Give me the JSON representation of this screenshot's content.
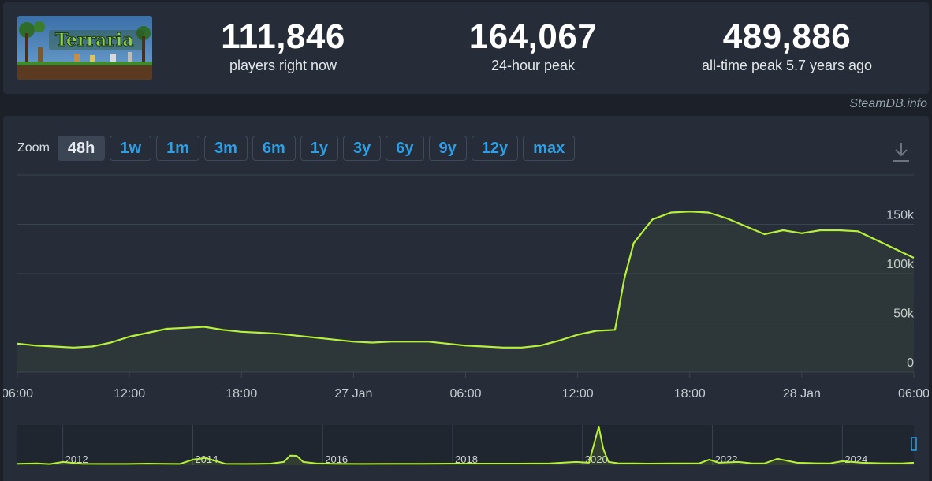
{
  "stats": {
    "current": {
      "value": "111,846",
      "label": "players right now"
    },
    "peak24": {
      "value": "164,067",
      "label": "24-hour peak"
    },
    "alltime": {
      "value": "489,886",
      "label": "all-time peak 5.7 years ago"
    }
  },
  "watermark": "SteamDB.info",
  "game_logo": {
    "text": "Terraria",
    "icon": "terraria-logo"
  },
  "zoom": {
    "label": "Zoom",
    "options": [
      "48h",
      "1w",
      "1m",
      "3m",
      "6m",
      "1y",
      "3y",
      "6y",
      "9y",
      "12y",
      "max"
    ],
    "selected": "48h"
  },
  "download_icon": "download-icon",
  "colors": {
    "line": "#b7f03a",
    "grid": "#3a4350",
    "axis_text": "#c7ccd3",
    "accent": "#2c9fe6"
  },
  "chart_data": [
    {
      "type": "area",
      "x_unit": "hours since 26 Jan 06:00",
      "x_ticks": [
        {
          "x": 0,
          "label": "06:00"
        },
        {
          "x": 6,
          "label": "12:00"
        },
        {
          "x": 12,
          "label": "18:00"
        },
        {
          "x": 18,
          "label": "27 Jan"
        },
        {
          "x": 24,
          "label": "06:00"
        },
        {
          "x": 30,
          "label": "12:00"
        },
        {
          "x": 36,
          "label": "18:00"
        },
        {
          "x": 42,
          "label": "28 Jan"
        },
        {
          "x": 48,
          "label": "06:00"
        }
      ],
      "y_ticks": [
        {
          "y": 0,
          "label": "0"
        },
        {
          "y": 50000,
          "label": "50k"
        },
        {
          "y": 100000,
          "label": "100k"
        },
        {
          "y": 150000,
          "label": "150k"
        }
      ],
      "xlim": [
        0,
        48
      ],
      "ylim": [
        0,
        200000
      ],
      "grid": true,
      "x": [
        0,
        1,
        2,
        3,
        4,
        5,
        6,
        7,
        8,
        9,
        10,
        11,
        12,
        13,
        14,
        15,
        16,
        17,
        18,
        19,
        20,
        21,
        22,
        23,
        24,
        25,
        26,
        27,
        28,
        29,
        30,
        31,
        32,
        32.5,
        33,
        34,
        35,
        36,
        37,
        38,
        39,
        40,
        41,
        42,
        43,
        44,
        45,
        46,
        47,
        48
      ],
      "values": [
        29000,
        27000,
        26000,
        25000,
        26000,
        30000,
        36000,
        40000,
        44000,
        45000,
        46000,
        43000,
        41000,
        40000,
        39000,
        37000,
        35000,
        33000,
        31000,
        30000,
        31000,
        31000,
        31000,
        29000,
        27000,
        26000,
        25000,
        25000,
        27000,
        32000,
        38000,
        42000,
        43000,
        95000,
        131000,
        155000,
        162000,
        163000,
        162000,
        156000,
        148000,
        140000,
        144000,
        141000,
        144000,
        144000,
        143000,
        134000,
        125000,
        116000
      ]
    },
    {
      "type": "area",
      "x_unit": "year",
      "x_ticks": [
        {
          "x": 2012,
          "label": "2012"
        },
        {
          "x": 2014,
          "label": "2014"
        },
        {
          "x": 2016,
          "label": "2016"
        },
        {
          "x": 2018,
          "label": "2018"
        },
        {
          "x": 2020,
          "label": "2020"
        },
        {
          "x": 2022,
          "label": "2022"
        },
        {
          "x": 2024,
          "label": "2024"
        }
      ],
      "xlim": [
        2011.3,
        2025.1
      ],
      "ylim": [
        0,
        500000
      ],
      "x": [
        2011.3,
        2011.6,
        2011.8,
        2012.0,
        2012.3,
        2012.6,
        2013.0,
        2013.3,
        2013.6,
        2013.8,
        2014.0,
        2014.2,
        2014.5,
        2014.8,
        2015.0,
        2015.2,
        2015.4,
        2015.5,
        2015.6,
        2015.7,
        2015.9,
        2016.2,
        2016.6,
        2017.0,
        2017.5,
        2018.0,
        2018.5,
        2019.0,
        2019.5,
        2019.9,
        2020.1,
        2020.25,
        2020.32,
        2020.4,
        2020.55,
        2020.8,
        2021.0,
        2021.4,
        2021.8,
        2021.95,
        2022.1,
        2022.4,
        2022.6,
        2022.8,
        2023.0,
        2023.3,
        2023.6,
        2023.8,
        2024.0,
        2024.3,
        2024.6,
        2024.9,
        2025.1
      ],
      "values": [
        18000,
        22000,
        14000,
        40000,
        18000,
        16000,
        16000,
        20000,
        18000,
        16000,
        70000,
        90000,
        18000,
        16000,
        18000,
        20000,
        40000,
        120000,
        118000,
        40000,
        22000,
        18000,
        16000,
        18000,
        18000,
        20000,
        20000,
        20000,
        22000,
        40000,
        30000,
        480000,
        200000,
        40000,
        24000,
        22000,
        20000,
        22000,
        24000,
        70000,
        30000,
        40000,
        24000,
        22000,
        80000,
        30000,
        24000,
        22000,
        50000,
        30000,
        24000,
        22000,
        30000
      ]
    }
  ]
}
